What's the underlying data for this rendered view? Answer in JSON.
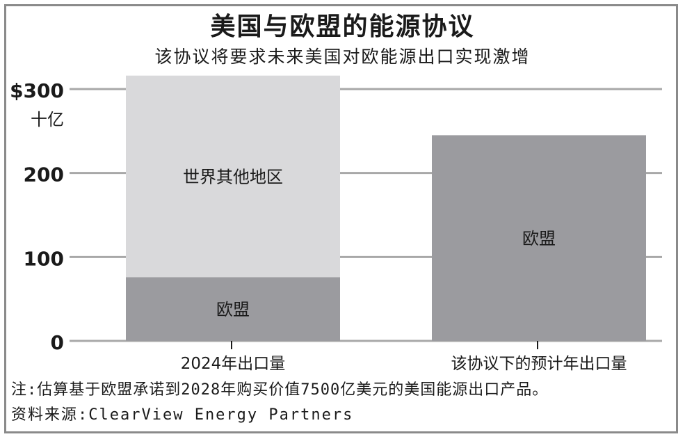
{
  "title": "美国与欧盟的能源协议",
  "subtitle": "该协议将要求未来美国对欧能源出口实现激增",
  "note": "注:估算基于欧盟承诺到2028年购买价值7500亿美元的美国能源出口产品。",
  "source": "资料来源:ClearView Energy Partners",
  "colors": {
    "eu": "#9b9b9f",
    "rest_of_world": "#d9d9db",
    "gridline": "#a8a8a8",
    "frame": "#8a8a8a"
  },
  "chart_data": {
    "type": "bar",
    "stacked": true,
    "categories": [
      "2024年出口量",
      "该协议下的预计年出口量"
    ],
    "series": [
      {
        "name": "欧盟",
        "values": [
          76,
          245
        ]
      },
      {
        "name": "世界其他地区",
        "values": [
          240,
          0
        ]
      }
    ],
    "ylim": [
      0,
      300
    ],
    "yticks": [
      {
        "value": 300,
        "label": "$300"
      },
      {
        "value": 200,
        "label": "200"
      },
      {
        "value": 100,
        "label": "100"
      },
      {
        "value": 0,
        "label": "0"
      }
    ],
    "yunit": "十亿",
    "grid": true
  }
}
